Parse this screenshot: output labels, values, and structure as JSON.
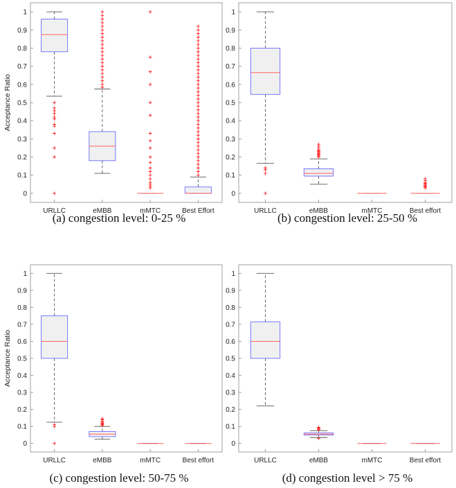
{
  "colors": {
    "box_fill": "#f0f0f0",
    "box_edge": "#6a6aff",
    "median": "#ff6060",
    "whisker": "#555555",
    "outlier": "#ff2020",
    "frame": "#888888"
  },
  "chart_data": [
    {
      "type": "box",
      "caption": "(a) congestion level: 0-25 %",
      "ylabel": "Acceptance Ratio",
      "ylim": [
        -0.05,
        1.05
      ],
      "yticks": [
        "0",
        "0.1",
        "0.2",
        "0.3",
        "0.4",
        "0.5",
        "0.6",
        "0.7",
        "0.8",
        "0.9",
        "1"
      ],
      "categories": [
        "URLLC",
        "eMBB",
        "mMTC",
        "Best Effort"
      ],
      "boxes": [
        {
          "q1": 0.78,
          "median": 0.875,
          "q3": 0.96,
          "whisker_low": 0.535,
          "whisker_high": 1.0,
          "outliers": [
            0.5,
            0.47,
            0.455,
            0.44,
            0.42,
            0.41,
            0.38,
            0.37,
            0.33,
            0.25,
            0.2,
            0.0
          ]
        },
        {
          "q1": 0.18,
          "median": 0.26,
          "q3": 0.34,
          "whisker_low": 0.11,
          "whisker_high": 0.575,
          "outliers": [
            1.0,
            0.98,
            0.96,
            0.94,
            0.92,
            0.9,
            0.88,
            0.86,
            0.84,
            0.82,
            0.8,
            0.78,
            0.76,
            0.74,
            0.72,
            0.7,
            0.68,
            0.66,
            0.64,
            0.62,
            0.6,
            0.585
          ]
        },
        {
          "q1": 0.0,
          "median": 0.0,
          "q3": 0.0,
          "whisker_low": 0.0,
          "whisker_high": 0.0,
          "outliers": [
            1.0,
            0.75,
            0.67,
            0.6,
            0.5,
            0.43,
            0.33,
            0.29,
            0.25,
            0.2,
            0.17,
            0.14,
            0.12,
            0.1,
            0.08,
            0.06,
            0.05,
            0.04,
            0.03
          ]
        },
        {
          "q1": 0.0,
          "median": 0.0,
          "q3": 0.035,
          "whisker_low": 0.0,
          "whisker_high": 0.09,
          "outliers": [
            0.92,
            0.9,
            0.88,
            0.86,
            0.84,
            0.82,
            0.8,
            0.78,
            0.76,
            0.74,
            0.72,
            0.7,
            0.68,
            0.66,
            0.64,
            0.62,
            0.6,
            0.58,
            0.56,
            0.54,
            0.52,
            0.5,
            0.48,
            0.46,
            0.44,
            0.42,
            0.4,
            0.38,
            0.36,
            0.34,
            0.32,
            0.3,
            0.28,
            0.26,
            0.24,
            0.22,
            0.2,
            0.18,
            0.16,
            0.14,
            0.12,
            0.1
          ]
        }
      ]
    },
    {
      "type": "box",
      "caption": "(b) congestion level: 25-50 %",
      "ylabel": "",
      "ylim": [
        -0.05,
        1.05
      ],
      "yticks": [
        "0",
        "0.1",
        "0.2",
        "0.3",
        "0.4",
        "0.5",
        "0.6",
        "0.7",
        "0.8",
        "0.9",
        "1"
      ],
      "categories": [
        "URLLC",
        "eMBB",
        "mMTC",
        "Best effort"
      ],
      "boxes": [
        {
          "q1": 0.545,
          "median": 0.665,
          "q3": 0.8,
          "whisker_low": 0.165,
          "whisker_high": 1.0,
          "outliers": [
            0.14,
            0.13,
            0.11,
            0.0
          ]
        },
        {
          "q1": 0.095,
          "median": 0.11,
          "q3": 0.135,
          "whisker_low": 0.05,
          "whisker_high": 0.19,
          "outliers": [
            0.27,
            0.26,
            0.25,
            0.24,
            0.235,
            0.23,
            0.225,
            0.22,
            0.215,
            0.21,
            0.205,
            0.2
          ]
        },
        {
          "q1": 0.0,
          "median": 0.0,
          "q3": 0.0,
          "whisker_low": 0.0,
          "whisker_high": 0.0,
          "outliers": []
        },
        {
          "q1": 0.0,
          "median": 0.0,
          "q3": 0.0,
          "whisker_low": 0.0,
          "whisker_high": 0.0,
          "outliers": [
            0.08,
            0.07,
            0.06,
            0.055,
            0.05,
            0.045,
            0.04,
            0.035,
            0.03
          ]
        }
      ]
    },
    {
      "type": "box",
      "caption": "(c) congestion level: 50-75 %",
      "ylabel": "Acceptance Ratio",
      "ylim": [
        -0.05,
        1.05
      ],
      "yticks": [
        "0",
        "0.1",
        "0.2",
        "0.3",
        "0.4",
        "0.5",
        "0.6",
        "0.7",
        "0.8",
        "0.9",
        "1"
      ],
      "categories": [
        "URLLC",
        "eMBB",
        "mMTC",
        "Best effort"
      ],
      "boxes": [
        {
          "q1": 0.5,
          "median": 0.6,
          "q3": 0.75,
          "whisker_low": 0.125,
          "whisker_high": 1.0,
          "outliers": [
            0.11,
            0.1,
            0.0
          ]
        },
        {
          "q1": 0.04,
          "median": 0.055,
          "q3": 0.07,
          "whisker_low": 0.025,
          "whisker_high": 0.1,
          "outliers": [
            0.145,
            0.14,
            0.13,
            0.125,
            0.12,
            0.115,
            0.11,
            0.105
          ]
        },
        {
          "q1": 0.0,
          "median": 0.0,
          "q3": 0.0,
          "whisker_low": 0.0,
          "whisker_high": 0.0,
          "outliers": []
        },
        {
          "q1": 0.0,
          "median": 0.0,
          "q3": 0.0,
          "whisker_low": 0.0,
          "whisker_high": 0.0,
          "outliers": []
        }
      ]
    },
    {
      "type": "box",
      "caption": "(d) congestion level > 75 %",
      "ylabel": "",
      "ylim": [
        -0.05,
        1.05
      ],
      "yticks": [
        "0",
        "0.1",
        "0.2",
        "0.3",
        "0.4",
        "0.5",
        "0.6",
        "0.7",
        "0.8",
        "0.9",
        "1"
      ],
      "categories": [
        "URLLC",
        "eMBB",
        "mMTC",
        "Best effort"
      ],
      "boxes": [
        {
          "q1": 0.5,
          "median": 0.6,
          "q3": 0.715,
          "whisker_low": 0.22,
          "whisker_high": 1.0,
          "outliers": []
        },
        {
          "q1": 0.05,
          "median": 0.055,
          "q3": 0.062,
          "whisker_low": 0.035,
          "whisker_high": 0.075,
          "outliers": [
            0.095,
            0.09,
            0.085,
            0.08,
            0.03
          ]
        },
        {
          "q1": 0.0,
          "median": 0.0,
          "q3": 0.0,
          "whisker_low": 0.0,
          "whisker_high": 0.0,
          "outliers": []
        },
        {
          "q1": 0.0,
          "median": 0.0,
          "q3": 0.0,
          "whisker_low": 0.0,
          "whisker_high": 0.0,
          "outliers": []
        }
      ]
    }
  ]
}
